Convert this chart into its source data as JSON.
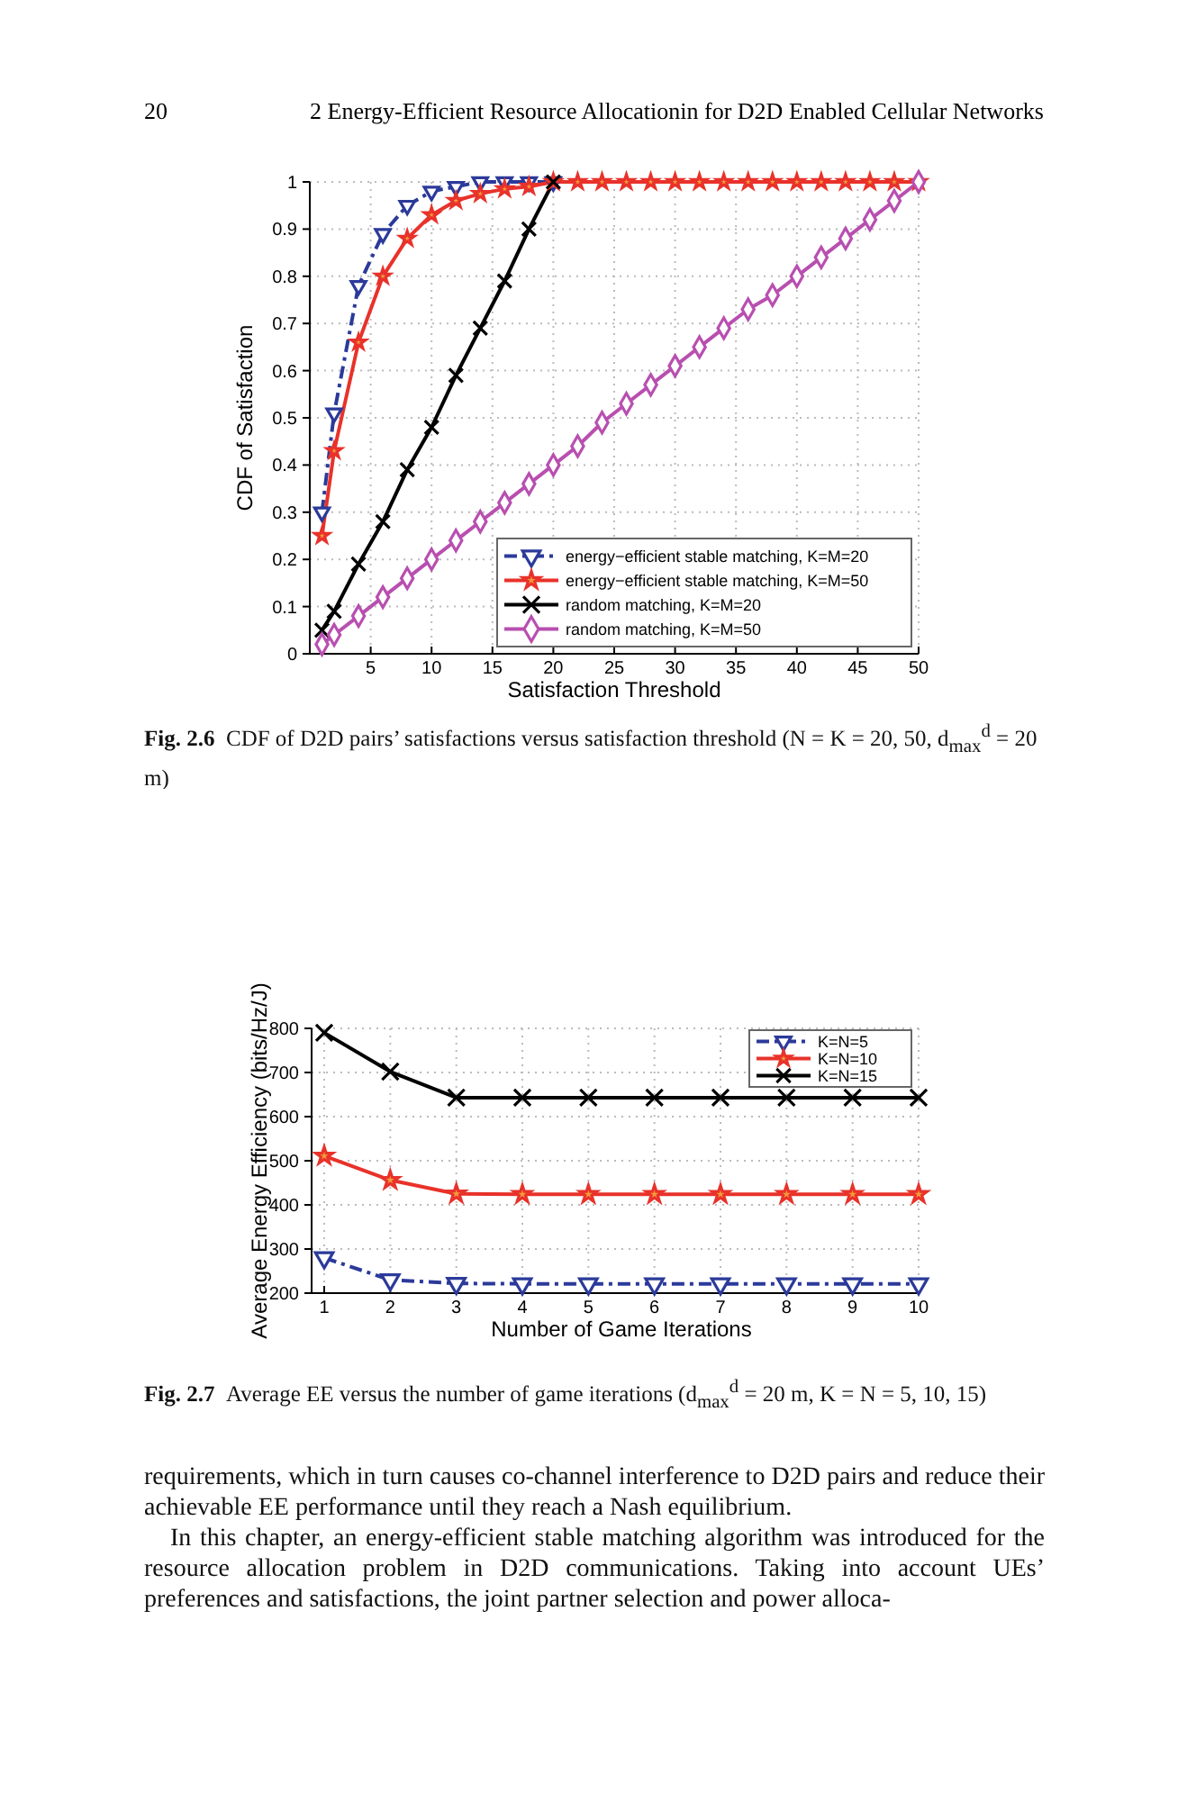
{
  "chart_data": [
    {
      "type": "line",
      "xlabel": "Satisfaction Threshold",
      "ylabel": "CDF of Satisfaction",
      "xlim": [
        0,
        50
      ],
      "ylim": [
        0,
        1
      ],
      "xticks": [
        5,
        10,
        15,
        20,
        25,
        30,
        35,
        40,
        45,
        50
      ],
      "yticks": [
        0,
        0.1,
        0.2,
        0.3,
        0.4,
        0.5,
        0.6,
        0.7,
        0.8,
        0.9,
        1
      ],
      "grid": true,
      "legend": "bottom right",
      "annotations": [
        "20",
        "2 Energy-Efficient Resource Allocationin for D2D Enabled Cellular Networks",
        "Fig. 2.6 CDF of D2D pairs’ satisfactions versus satisfaction threshold (N = K = 20, 50, d$_{max}$$^{d}$ = 20 m)"
      ],
      "series": [
        {
          "name": "energy−efficient stable matching, K=M=20",
          "color": "#2b3a9a",
          "marker": "triangle",
          "line_style": "dashed",
          "x": [
            1,
            2,
            4,
            6,
            8,
            10,
            12,
            14,
            16,
            18,
            20
          ],
          "values": [
            0.3,
            0.51,
            0.78,
            0.89,
            0.95,
            0.98,
            0.99,
            1,
            1,
            1,
            1
          ]
        },
        {
          "name": "energy−efficient stable matching, K=M=50",
          "color": "#e8322a",
          "marker": "star",
          "line_style": "solid",
          "x": [
            1,
            2,
            4,
            6,
            8,
            10,
            12,
            14,
            16,
            18,
            20,
            22,
            24,
            26,
            28,
            30,
            32,
            34,
            36,
            38,
            40,
            42,
            44,
            46,
            48,
            50
          ],
          "values": [
            0.25,
            0.43,
            0.66,
            0.8,
            0.88,
            0.93,
            0.96,
            0.975,
            0.985,
            0.99,
            1,
            1,
            1,
            1,
            1,
            1,
            1,
            1,
            1,
            1,
            1,
            1,
            1,
            1,
            1,
            1
          ]
        },
        {
          "name": "random matching, K=M=20",
          "color": "#000000",
          "marker": "cross",
          "line_style": "solid",
          "x": [
            1,
            2,
            4,
            6,
            8,
            10,
            12,
            14,
            16,
            18,
            20
          ],
          "values": [
            0.05,
            0.09,
            0.19,
            0.28,
            0.39,
            0.48,
            0.59,
            0.69,
            0.79,
            0.9,
            1
          ]
        },
        {
          "name": "random matching, K=M=50",
          "color": "#b84fb0",
          "marker": "diamond",
          "line_style": "solid",
          "x": [
            1,
            2,
            4,
            6,
            8,
            10,
            12,
            14,
            16,
            18,
            20,
            22,
            24,
            26,
            28,
            30,
            32,
            34,
            36,
            38,
            40,
            42,
            44,
            46,
            48,
            50
          ],
          "values": [
            0.02,
            0.04,
            0.08,
            0.12,
            0.16,
            0.2,
            0.24,
            0.28,
            0.32,
            0.36,
            0.4,
            0.44,
            0.49,
            0.53,
            0.57,
            0.61,
            0.65,
            0.69,
            0.73,
            0.76,
            0.8,
            0.84,
            0.88,
            0.92,
            0.96,
            1
          ]
        }
      ]
    },
    {
      "type": "line",
      "xlabel": "Number of Game Iterations",
      "ylabel": "Average Energy Efficiency (bits/Hz/J)",
      "xlim": [
        1,
        10
      ],
      "ylim": [
        200,
        800
      ],
      "xticks": [
        1,
        2,
        3,
        4,
        5,
        6,
        7,
        8,
        9,
        10
      ],
      "yticks": [
        200,
        300,
        400,
        500,
        600,
        700,
        800
      ],
      "grid": true,
      "legend": "top right",
      "annotations": [
        "Fig. 2.7 Average EE versus the number of game iterations (d$_{max}$$^{d}$ = 20 m, K = N = 5, 10, 15)",
        "requirements, which in turn causes co-channel interference to D2D pairs and reduce their achievable EE performance until they reach a Nash equilibrium.",
        "In this chapter, an energy-efficient stable matching algorithm was introduced for the resource allocation problem in D2D communications. Taking into account UEs’ preferences and satisfactions, the joint partner selection and power alloca-"
      ],
      "x": [
        1,
        2,
        3,
        4,
        5,
        6,
        7,
        8,
        9,
        10
      ],
      "series": [
        {
          "name": "K=N=5",
          "color": "#2b3a9a",
          "marker": "triangle",
          "line_style": "dashed",
          "values": [
            280,
            230,
            222,
            221,
            221,
            221,
            221,
            221,
            221,
            221
          ]
        },
        {
          "name": "K=N=10",
          "color": "#e8322a",
          "marker": "star",
          "line_style": "solid",
          "values": [
            511,
            456,
            425,
            424,
            424,
            424,
            424,
            424,
            424,
            424
          ]
        },
        {
          "name": "K=N=15",
          "color": "#000000",
          "marker": "cross",
          "line_style": "solid",
          "values": [
            790,
            702,
            643,
            643,
            643,
            643,
            643,
            643,
            643,
            643
          ]
        }
      ]
    }
  ]
}
